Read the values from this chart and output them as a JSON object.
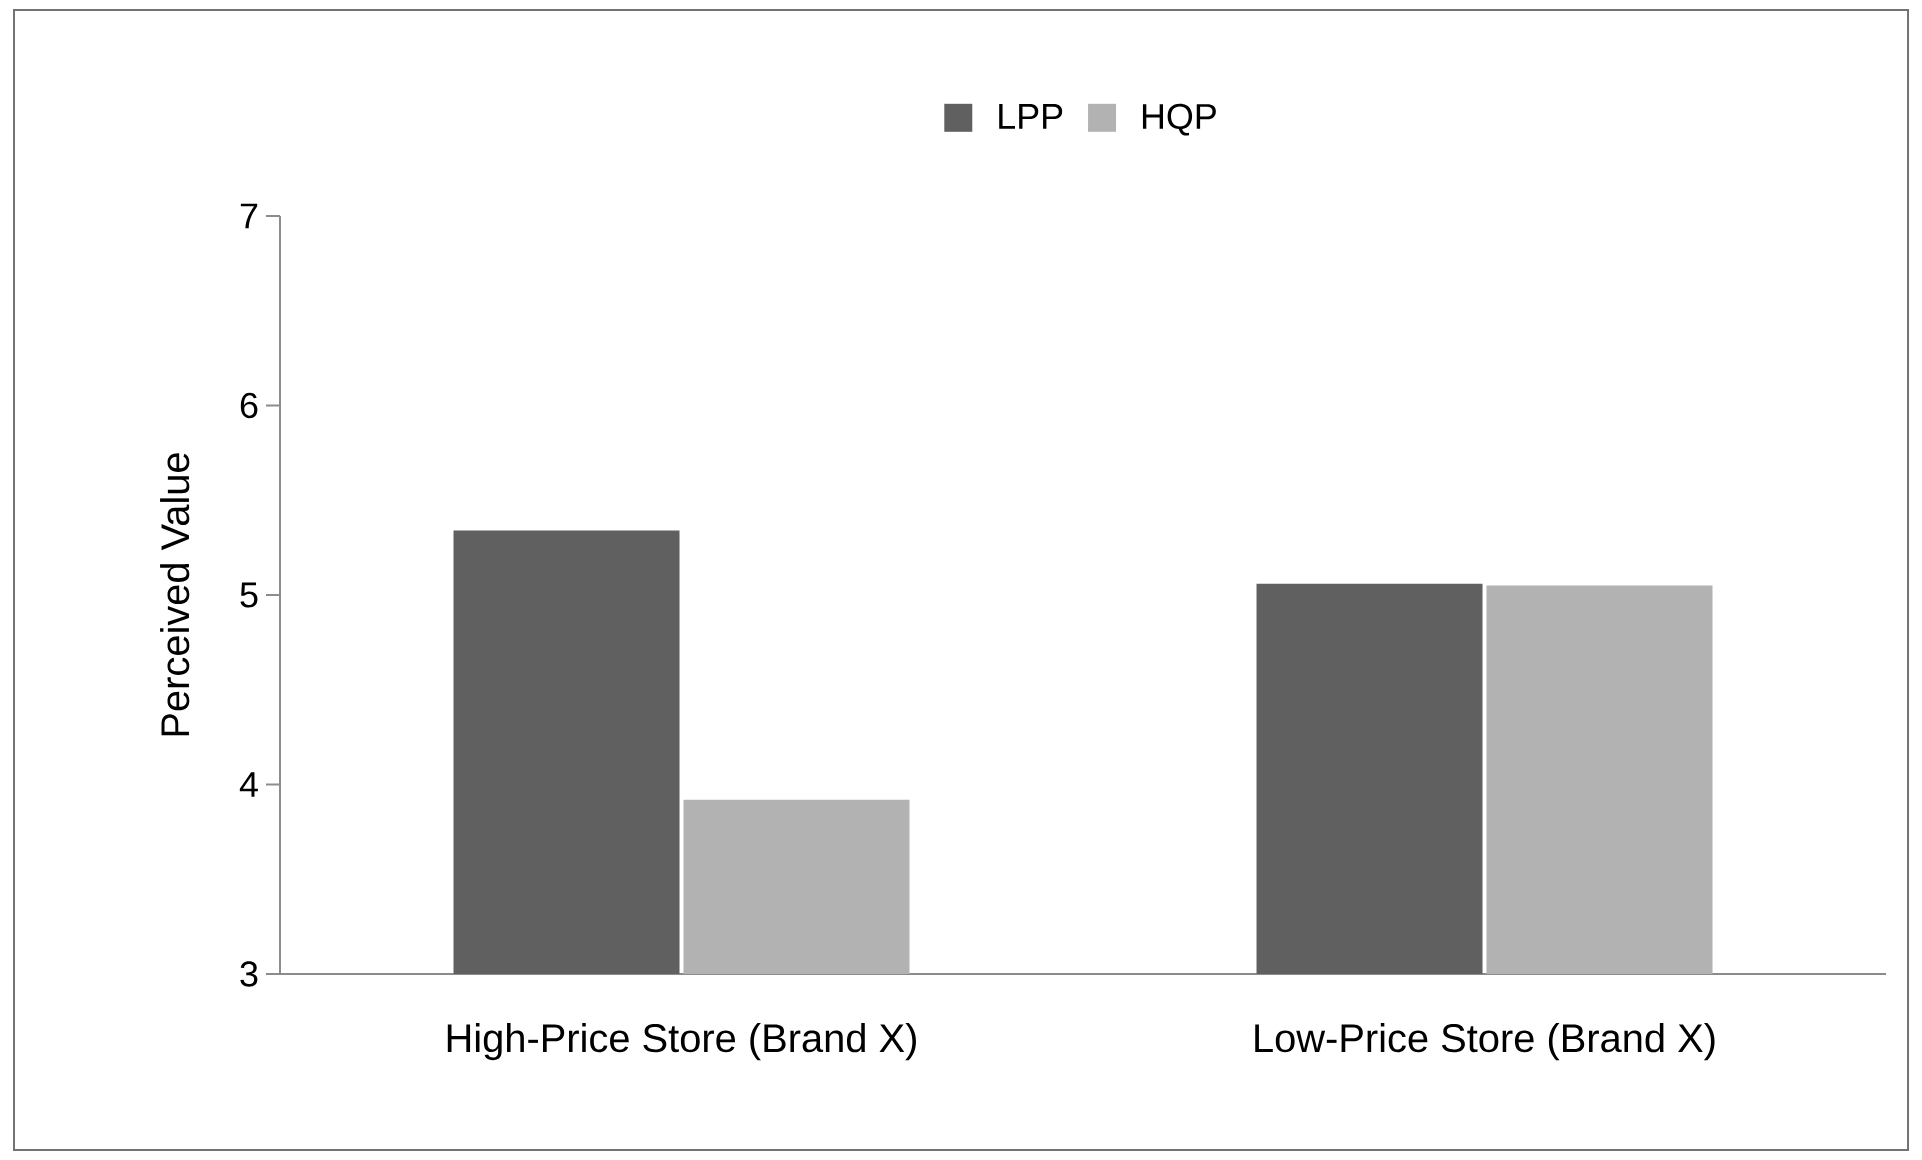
{
  "chart_data": {
    "type": "bar",
    "ylabel": "Perceived Value",
    "categories": [
      "High-Price Store (Brand X)",
      "Low-Price Store (Brand X)"
    ],
    "series": [
      {
        "name": "LPP",
        "color": "#606060",
        "values": [
          5.34,
          5.06
        ]
      },
      {
        "name": "HQP",
        "color": "#b2b2b2",
        "values": [
          3.92,
          5.05
        ]
      }
    ],
    "ylim": [
      3,
      7
    ],
    "yticks": [
      3,
      4,
      5,
      6,
      7
    ],
    "grid": false,
    "legend": "top"
  }
}
